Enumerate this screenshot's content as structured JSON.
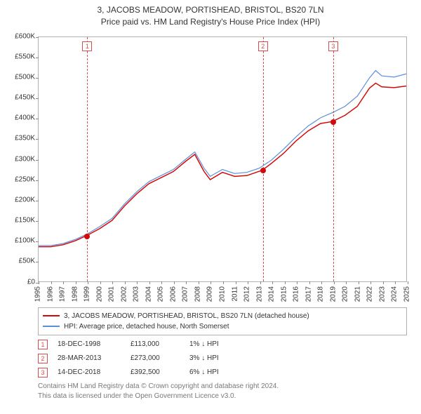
{
  "title_line1": "3, JACOBS MEADOW, PORTISHEAD, BRISTOL, BS20 7LN",
  "title_line2": "Price paid vs. HM Land Registry's House Price Index (HPI)",
  "chart": {
    "type": "line",
    "background_color": "#ffffff",
    "border_color": "#b0b0b0",
    "tick_color": "#888888",
    "label_fontsize": 10,
    "label_color": "#333333",
    "x_start_year": 1995,
    "x_end_year": 2025,
    "ylim": [
      0,
      600000
    ],
    "ytick_step": 50000,
    "ytick_labels": [
      "£0",
      "£50K",
      "£100K",
      "£150K",
      "£200K",
      "£250K",
      "£300K",
      "£350K",
      "£400K",
      "£450K",
      "£500K",
      "£550K",
      "£600K"
    ],
    "xtick_labels": [
      "1995",
      "1996",
      "1997",
      "1998",
      "1999",
      "2000",
      "2001",
      "2002",
      "2003",
      "2004",
      "2005",
      "2006",
      "2007",
      "2008",
      "2009",
      "2010",
      "2011",
      "2012",
      "2013",
      "2014",
      "2015",
      "2016",
      "2017",
      "2018",
      "2019",
      "2020",
      "2021",
      "2022",
      "2023",
      "2024",
      "2025"
    ],
    "series": [
      {
        "name": "price-paid",
        "color": "#d30a0a",
        "width": 1.5,
        "points": [
          [
            1995.0,
            85000
          ],
          [
            1996.0,
            85000
          ],
          [
            1997.0,
            90000
          ],
          [
            1998.0,
            100000
          ],
          [
            1998.96,
            113000
          ],
          [
            2000.0,
            130000
          ],
          [
            2001.0,
            150000
          ],
          [
            2002.0,
            185000
          ],
          [
            2003.0,
            215000
          ],
          [
            2004.0,
            240000
          ],
          [
            2005.0,
            255000
          ],
          [
            2006.0,
            270000
          ],
          [
            2007.0,
            295000
          ],
          [
            2007.75,
            312000
          ],
          [
            2008.5,
            270000
          ],
          [
            2009.0,
            250000
          ],
          [
            2010.0,
            268000
          ],
          [
            2011.0,
            258000
          ],
          [
            2012.0,
            260000
          ],
          [
            2013.24,
            273000
          ],
          [
            2014.0,
            290000
          ],
          [
            2015.0,
            315000
          ],
          [
            2016.0,
            345000
          ],
          [
            2017.0,
            370000
          ],
          [
            2018.0,
            388000
          ],
          [
            2018.95,
            392500
          ],
          [
            2020.0,
            408000
          ],
          [
            2021.0,
            430000
          ],
          [
            2022.0,
            475000
          ],
          [
            2022.5,
            487000
          ],
          [
            2023.0,
            478000
          ],
          [
            2024.0,
            476000
          ],
          [
            2025.0,
            480000
          ]
        ]
      },
      {
        "name": "hpi",
        "color": "#5b8fd6",
        "width": 1.2,
        "points": [
          [
            1995.0,
            88000
          ],
          [
            1996.0,
            88000
          ],
          [
            1997.0,
            93000
          ],
          [
            1998.0,
            103000
          ],
          [
            1999.0,
            117000
          ],
          [
            2000.0,
            135000
          ],
          [
            2001.0,
            155000
          ],
          [
            2002.0,
            190000
          ],
          [
            2003.0,
            220000
          ],
          [
            2004.0,
            245000
          ],
          [
            2005.0,
            260000
          ],
          [
            2006.0,
            275000
          ],
          [
            2007.0,
            300000
          ],
          [
            2007.75,
            318000
          ],
          [
            2008.5,
            278000
          ],
          [
            2009.0,
            258000
          ],
          [
            2010.0,
            275000
          ],
          [
            2011.0,
            265000
          ],
          [
            2012.0,
            268000
          ],
          [
            2013.0,
            278000
          ],
          [
            2014.0,
            298000
          ],
          [
            2015.0,
            325000
          ],
          [
            2016.0,
            355000
          ],
          [
            2017.0,
            382000
          ],
          [
            2018.0,
            402000
          ],
          [
            2019.0,
            415000
          ],
          [
            2020.0,
            430000
          ],
          [
            2021.0,
            455000
          ],
          [
            2022.0,
            500000
          ],
          [
            2022.5,
            518000
          ],
          [
            2023.0,
            505000
          ],
          [
            2024.0,
            502000
          ],
          [
            2025.0,
            510000
          ]
        ]
      }
    ],
    "flags": [
      {
        "n": "1",
        "year": 1998.96,
        "value": 113000
      },
      {
        "n": "2",
        "year": 2013.24,
        "value": 273000
      },
      {
        "n": "3",
        "year": 2018.95,
        "value": 392500
      }
    ],
    "flag_color": "#d94c4c",
    "marker_color": "#d30a0a"
  },
  "legend": {
    "border_color": "#b0b0b0",
    "items": [
      {
        "color": "#d30a0a",
        "label": "3, JACOBS MEADOW, PORTISHEAD, BRISTOL, BS20 7LN (detached house)"
      },
      {
        "color": "#5b8fd6",
        "label": "HPI: Average price, detached house, North Somerset"
      }
    ]
  },
  "events": [
    {
      "n": "1",
      "date": "18-DEC-1998",
      "price": "£113,000",
      "delta": "1% ↓ HPI"
    },
    {
      "n": "2",
      "date": "28-MAR-2013",
      "price": "£273,000",
      "delta": "3% ↓ HPI"
    },
    {
      "n": "3",
      "date": "14-DEC-2018",
      "price": "£392,500",
      "delta": "6% ↓ HPI"
    }
  ],
  "footer_line1": "Contains HM Land Registry data © Crown copyright and database right 2024.",
  "footer_line2": "This data is licensed under the Open Government Licence v3.0.",
  "theme": {
    "flag_box_bg": "#ffffff",
    "footer_color": "#7a7a7a"
  }
}
